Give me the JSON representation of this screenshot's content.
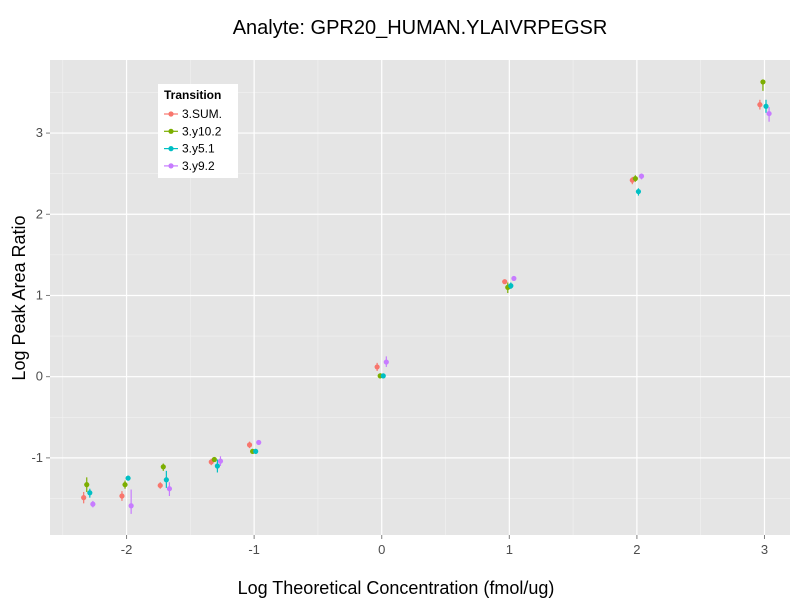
{
  "chart_data": {
    "type": "scatter",
    "title": "Analyte: GPR20_HUMAN.YLAIVRPEGSR",
    "xlabel": "Log Theoretical Concentration (fmol/ug)",
    "ylabel": "Log Peak Area Ratio",
    "xlim": [
      -2.6,
      3.2
    ],
    "ylim": [
      -1.95,
      3.9
    ],
    "xticks": [
      -2,
      -1,
      0,
      1,
      2,
      3
    ],
    "yticks": [
      -1,
      0,
      1,
      2,
      3
    ],
    "xtick_labels": [
      "-2",
      "-1",
      "0",
      "1",
      "2",
      "3"
    ],
    "ytick_labels": [
      "-1",
      "0",
      "1",
      "2",
      "3"
    ],
    "grid": true,
    "legend": {
      "title": "Transition",
      "position": "top-left"
    },
    "series": [
      {
        "name": "3.SUM.",
        "color": "#F8766D",
        "points": [
          {
            "x": -2.3,
            "y": -1.49,
            "lo": -1.56,
            "hi": -1.42
          },
          {
            "x": -2.0,
            "y": -1.47,
            "lo": -1.53,
            "hi": -1.41
          },
          {
            "x": -1.7,
            "y": -1.34,
            "lo": -1.38,
            "hi": -1.3
          },
          {
            "x": -1.3,
            "y": -1.05,
            "lo": -1.09,
            "hi": -1.01
          },
          {
            "x": -1.0,
            "y": -0.84,
            "lo": -0.88,
            "hi": -0.8
          },
          {
            "x": 0.0,
            "y": 0.12,
            "lo": 0.07,
            "hi": 0.17
          },
          {
            "x": 1.0,
            "y": 1.17,
            "lo": 1.15,
            "hi": 1.19
          },
          {
            "x": 2.0,
            "y": 2.42,
            "lo": 2.37,
            "hi": 2.46
          },
          {
            "x": 3.0,
            "y": 3.35,
            "lo": 3.29,
            "hi": 3.41
          }
        ]
      },
      {
        "name": "3.y10.2",
        "color": "#7CAE00",
        "points": [
          {
            "x": -2.3,
            "y": -1.33,
            "lo": -1.42,
            "hi": -1.24
          },
          {
            "x": -2.0,
            "y": -1.33,
            "lo": -1.38,
            "hi": -1.28
          },
          {
            "x": -1.7,
            "y": -1.11,
            "lo": -1.16,
            "hi": -1.07
          },
          {
            "x": -1.3,
            "y": -1.02,
            "lo": -1.05,
            "hi": -0.99
          },
          {
            "x": -1.0,
            "y": -0.92,
            "lo": -0.95,
            "hi": -0.89
          },
          {
            "x": 0.0,
            "y": 0.01,
            "lo": -0.02,
            "hi": 0.04
          },
          {
            "x": 1.0,
            "y": 1.1,
            "lo": 1.03,
            "hi": 1.16
          },
          {
            "x": 2.0,
            "y": 2.44,
            "lo": 2.4,
            "hi": 2.48
          },
          {
            "x": 3.0,
            "y": 3.63,
            "lo": 3.52,
            "hi": 3.66
          }
        ]
      },
      {
        "name": "3.y5.1",
        "color": "#00BFC4",
        "points": [
          {
            "x": -2.3,
            "y": -1.43,
            "lo": -1.49,
            "hi": -1.38
          },
          {
            "x": -2.0,
            "y": -1.25,
            "lo": -1.28,
            "hi": -1.22
          },
          {
            "x": -1.7,
            "y": -1.27,
            "lo": -1.37,
            "hi": -1.16
          },
          {
            "x": -1.3,
            "y": -1.1,
            "lo": -1.18,
            "hi": -1.02
          },
          {
            "x": -1.0,
            "y": -0.92,
            "lo": -0.95,
            "hi": -0.89
          },
          {
            "x": 0.0,
            "y": 0.01,
            "lo": -0.02,
            "hi": 0.04
          },
          {
            "x": 1.0,
            "y": 1.12,
            "lo": 1.08,
            "hi": 1.16
          },
          {
            "x": 2.0,
            "y": 2.28,
            "lo": 2.23,
            "hi": 2.32
          },
          {
            "x": 3.0,
            "y": 3.33,
            "lo": 3.25,
            "hi": 3.41
          }
        ]
      },
      {
        "name": "3.y9.2",
        "color": "#C77CFF",
        "points": [
          {
            "x": -2.3,
            "y": -1.57,
            "lo": -1.61,
            "hi": -1.53
          },
          {
            "x": -2.0,
            "y": -1.59,
            "lo": -1.69,
            "hi": -1.39
          },
          {
            "x": -1.7,
            "y": -1.38,
            "lo": -1.47,
            "hi": -1.3
          },
          {
            "x": -1.3,
            "y": -1.04,
            "lo": -1.1,
            "hi": -0.98
          },
          {
            "x": -1.0,
            "y": -0.81,
            "lo": -0.84,
            "hi": -0.78
          },
          {
            "x": 0.0,
            "y": 0.18,
            "lo": 0.12,
            "hi": 0.25
          },
          {
            "x": 1.0,
            "y": 1.21,
            "lo": 1.18,
            "hi": 1.24
          },
          {
            "x": 2.0,
            "y": 2.47,
            "lo": 2.43,
            "hi": 2.5
          },
          {
            "x": 3.0,
            "y": 3.24,
            "lo": 3.14,
            "hi": 3.32
          }
        ]
      }
    ]
  }
}
